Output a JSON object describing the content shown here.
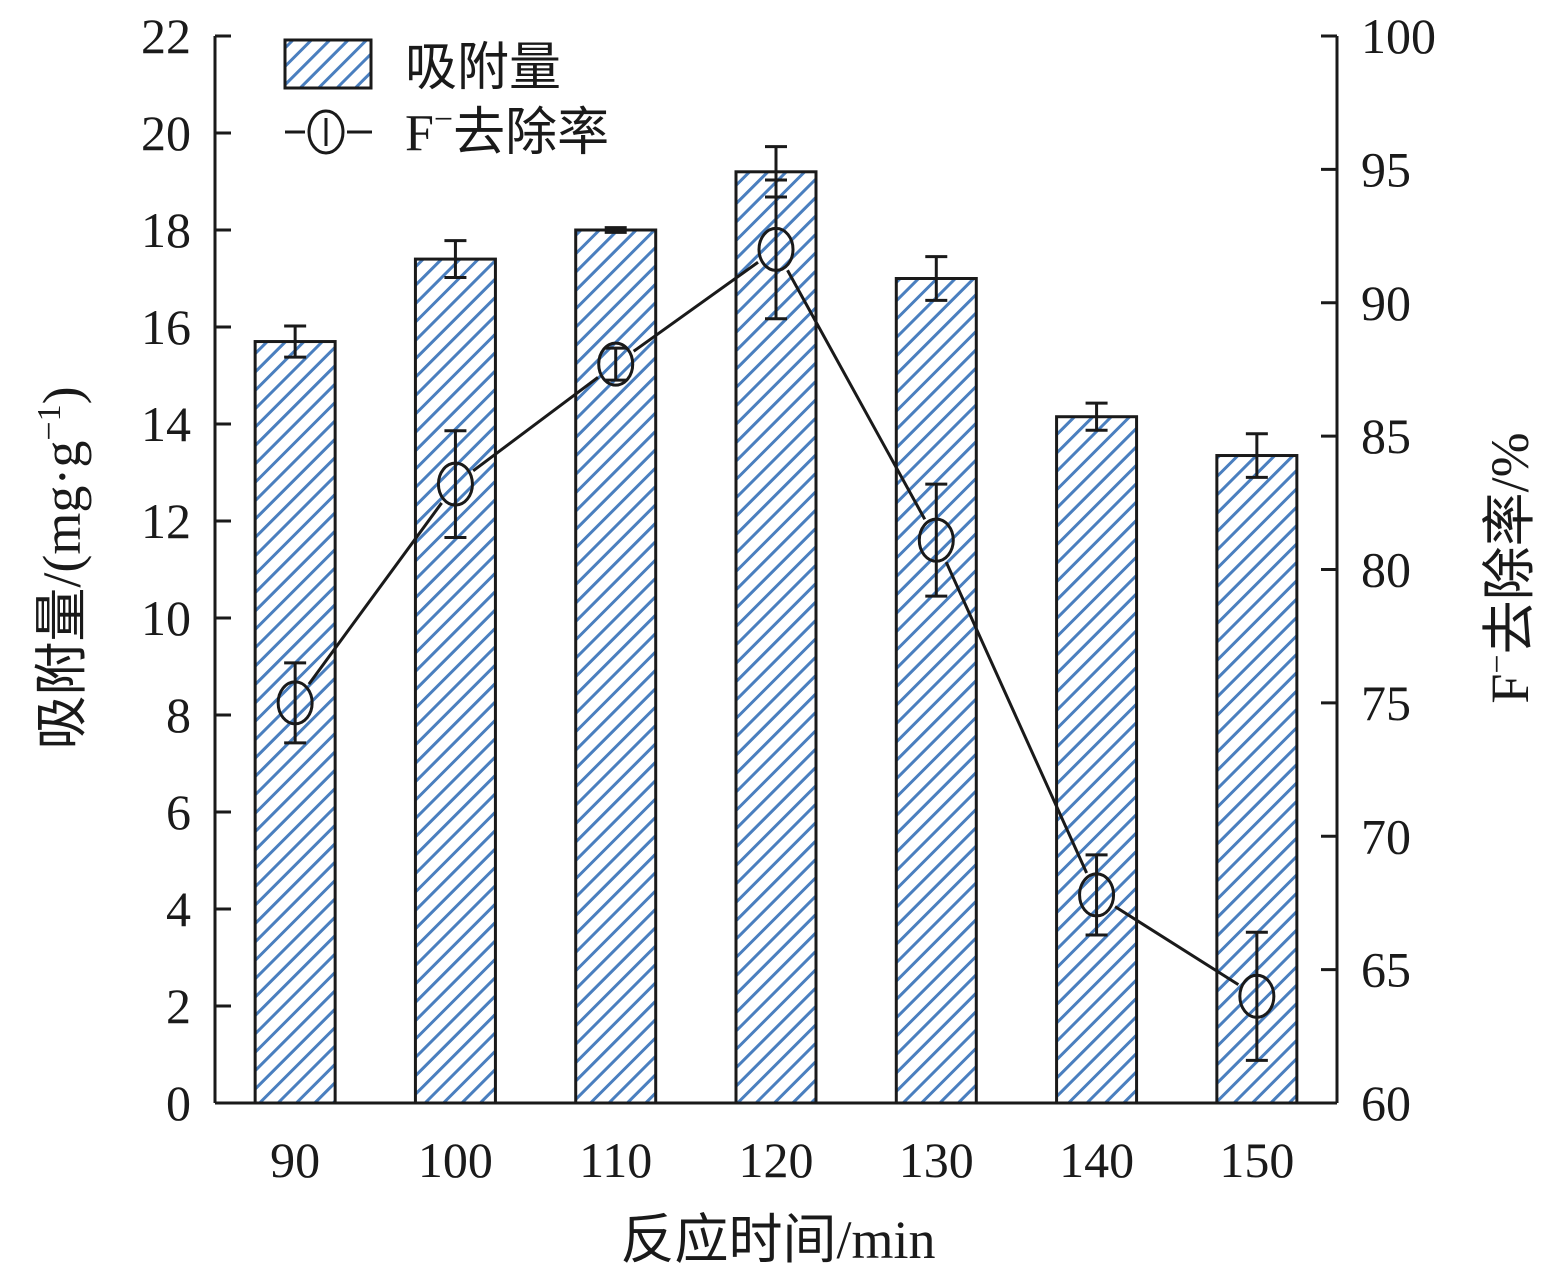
{
  "chart_data": {
    "type": "bar",
    "categories": [
      "90",
      "100",
      "110",
      "120",
      "130",
      "140",
      "150"
    ],
    "xlabel": "反应时间/min",
    "ylabel": "吸附量/(mg·g",
    "ylabel_sup": "−1",
    "ylabel_close": ")",
    "y2label_prefix": "F",
    "y2label_sup": "−",
    "y2label_suffix": "去除率/%",
    "ylim": [
      0,
      22
    ],
    "yticks": [
      0,
      2,
      4,
      6,
      8,
      10,
      12,
      14,
      16,
      18,
      20,
      22
    ],
    "y2lim": [
      60,
      100
    ],
    "y2ticks": [
      60,
      65,
      70,
      75,
      80,
      85,
      90,
      95,
      100
    ],
    "grid": false,
    "legend_position": "top-left",
    "series": [
      {
        "name": "吸附量",
        "kind": "bar",
        "axis": "left",
        "values": [
          15.7,
          17.4,
          18.0,
          19.2,
          17.0,
          14.15,
          13.35
        ],
        "errors": [
          0.32,
          0.38,
          0.05,
          0.52,
          0.45,
          0.28,
          0.45
        ],
        "color": "#4a7fbf",
        "pattern": "diagonal-hatch"
      },
      {
        "name_prefix": "F",
        "name_sup": "−",
        "name_suffix": "去除率",
        "kind": "line",
        "axis": "right",
        "marker": "open-circle",
        "values": [
          75.0,
          83.2,
          87.7,
          92.0,
          81.1,
          67.8,
          64.0
        ],
        "errors": [
          1.5,
          2.0,
          0.6,
          2.6,
          2.1,
          1.5,
          2.4
        ]
      }
    ]
  }
}
